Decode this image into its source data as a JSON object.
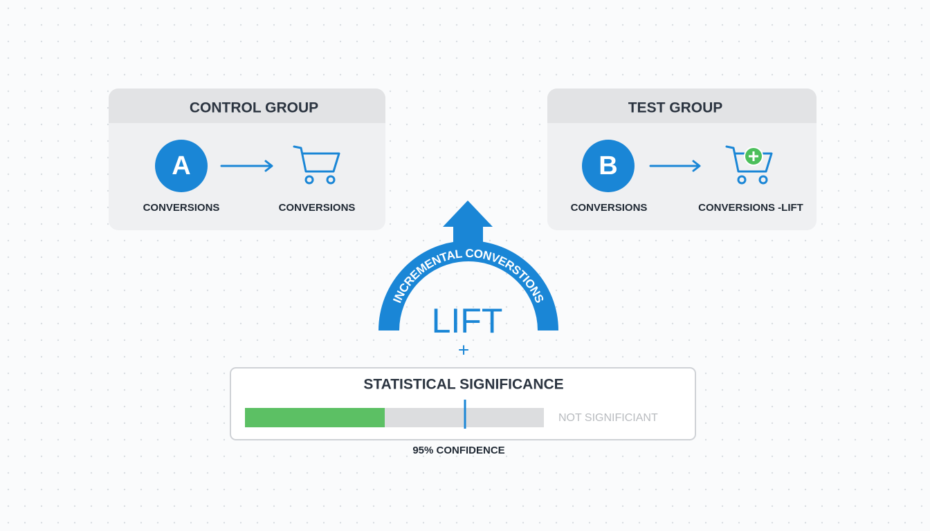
{
  "control_group": {
    "title": "CONTROL GROUP",
    "badge": "A",
    "left_label": "CONVERSIONS",
    "right_label": "CONVERSIONS"
  },
  "test_group": {
    "title": "TEST GROUP",
    "badge": "B",
    "left_label": "CONVERSIONS",
    "right_label": "CONVERSIONS -LIFT"
  },
  "arc_label": "INCREMENTAL CONVERSTIONS",
  "lift": {
    "title": "LIFT",
    "symbol": "+"
  },
  "significance": {
    "title": "STATISTICAL SIGNIFICANCE",
    "status": "NOT SIGNIFICIANT",
    "caption": "95% CONFIDENCE"
  }
}
